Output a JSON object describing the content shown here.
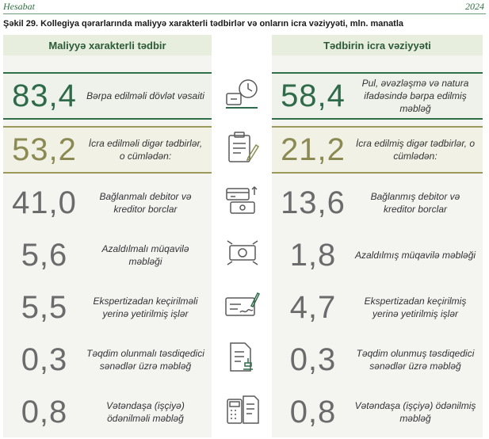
{
  "header": {
    "left": "Hesabat",
    "right": "2024"
  },
  "figure_title": "Şəkil 29. Kollegiya qərarlarında maliyyə xarakterli tədbirlər və onların icra vəziyyəti, mln. manatla",
  "left_column": {
    "title": "Maliyyə xarakterli tədbir",
    "rows": [
      {
        "value": "83,4",
        "label": "Bərpa edilməli dövlət vəsaiti"
      },
      {
        "value": "53,2",
        "label": "İcra edilməli digər tədbirlər, o cümlədən:"
      },
      {
        "value": "41,0",
        "label": "Bağlanmalı debitor və kreditor borclar"
      },
      {
        "value": "5,6",
        "label": "Azaldılmalı müqavilə məbləği"
      },
      {
        "value": "5,5",
        "label": "Ekspertizadan keçirilməli yerinə yetirilmiş işlər"
      },
      {
        "value": "0,3",
        "label": "Təqdim olunmalı təsdiqedici sənədlər üzrə məbləğ"
      },
      {
        "value": "0,8",
        "label": "Vətəndaşa (işçiyə) ödənilməli məbləğ"
      }
    ]
  },
  "right_column": {
    "title": "Tədbirin icra vəziyyəti",
    "rows": [
      {
        "value": "58,4",
        "label": "Pul, əvəzləşmə və natura ifadəsində bərpa edilmiş məbləğ"
      },
      {
        "value": "21,2",
        "label": "İcra edilmiş digər tədbirlər, o cümlədən:"
      },
      {
        "value": "13,6",
        "label": "Bağlanmış debitor və kreditor borclar"
      },
      {
        "value": "1,8",
        "label": "Azaldılmış müqavilə məbləği"
      },
      {
        "value": "4,7",
        "label": "Ekspertizadan keçirilmiş yerinə yetirilmiş işlər"
      },
      {
        "value": "0,3",
        "label": "Təqdim olunmuş təsdiqedici sənədlər üzrə məbləğ"
      },
      {
        "value": "0,8",
        "label": "Vətəndaşa (işçiyə) ödənilmiş məbləğ"
      }
    ]
  },
  "icons": [
    "money-clock-icon",
    "clipboard-pen-icon",
    "card-transfer-icon",
    "cash-cut-icon",
    "cheque-sign-icon",
    "document-stamp-icon",
    "calculator-document-icon"
  ],
  "colors": {
    "green": "#2f6b4a",
    "olive": "#8a8a52",
    "grey": "#6b6b6b",
    "header_bg": "#e8eedd"
  }
}
